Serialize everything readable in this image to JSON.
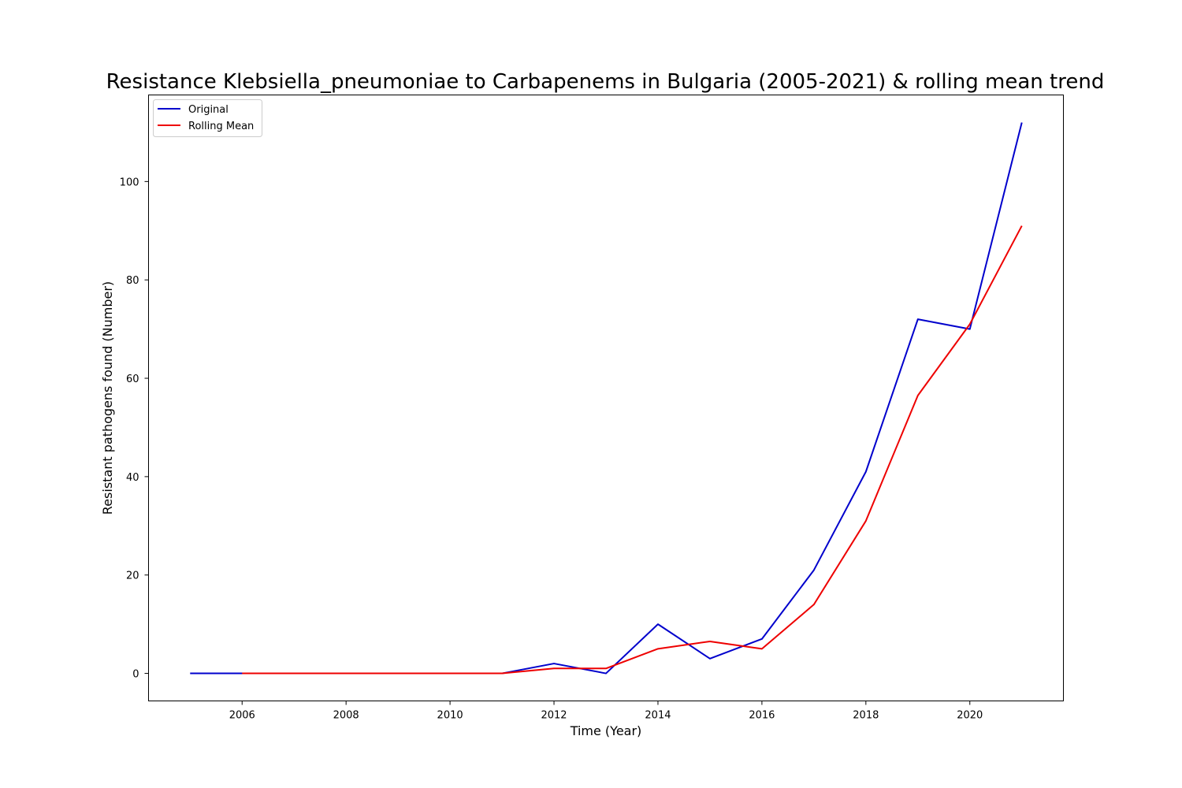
{
  "chart_data": {
    "type": "line",
    "title": "Resistance Klebsiella_pneumoniae to Carbapenems in Bulgaria (2005-2021) & rolling mean trend",
    "xlabel": "Time (Year)",
    "ylabel": "Resistant pathogens found (Number)",
    "xlim": [
      2004.2,
      2021.8
    ],
    "ylim": [
      -5.6,
      117.6
    ],
    "xticks": [
      2006,
      2008,
      2010,
      2012,
      2014,
      2016,
      2018,
      2020
    ],
    "yticks": [
      0,
      20,
      40,
      60,
      80,
      100
    ],
    "xtick_labels": [
      "2006",
      "2008",
      "2010",
      "2012",
      "2014",
      "2016",
      "2018",
      "2020"
    ],
    "ytick_labels": [
      "0",
      "20",
      "40",
      "60",
      "80",
      "100"
    ],
    "grid": false,
    "legend_position": "top-left",
    "series": [
      {
        "name": "Original",
        "color": "#0000cc",
        "x": [
          2005,
          2006,
          2007,
          2008,
          2009,
          2010,
          2011,
          2012,
          2013,
          2014,
          2015,
          2016,
          2017,
          2018,
          2019,
          2020,
          2021
        ],
        "y": [
          0,
          0,
          0,
          0,
          0,
          0,
          0,
          2,
          0,
          10,
          3,
          7,
          21,
          41,
          72,
          70,
          112
        ]
      },
      {
        "name": "Rolling Mean",
        "color": "#ee0000",
        "x": [
          2006,
          2007,
          2008,
          2009,
          2010,
          2011,
          2012,
          2013,
          2014,
          2015,
          2016,
          2017,
          2018,
          2019,
          2020,
          2021
        ],
        "y": [
          0,
          0,
          0,
          0,
          0,
          0,
          1,
          1,
          5,
          6.5,
          5,
          14,
          31,
          56.5,
          71,
          91
        ]
      }
    ]
  }
}
